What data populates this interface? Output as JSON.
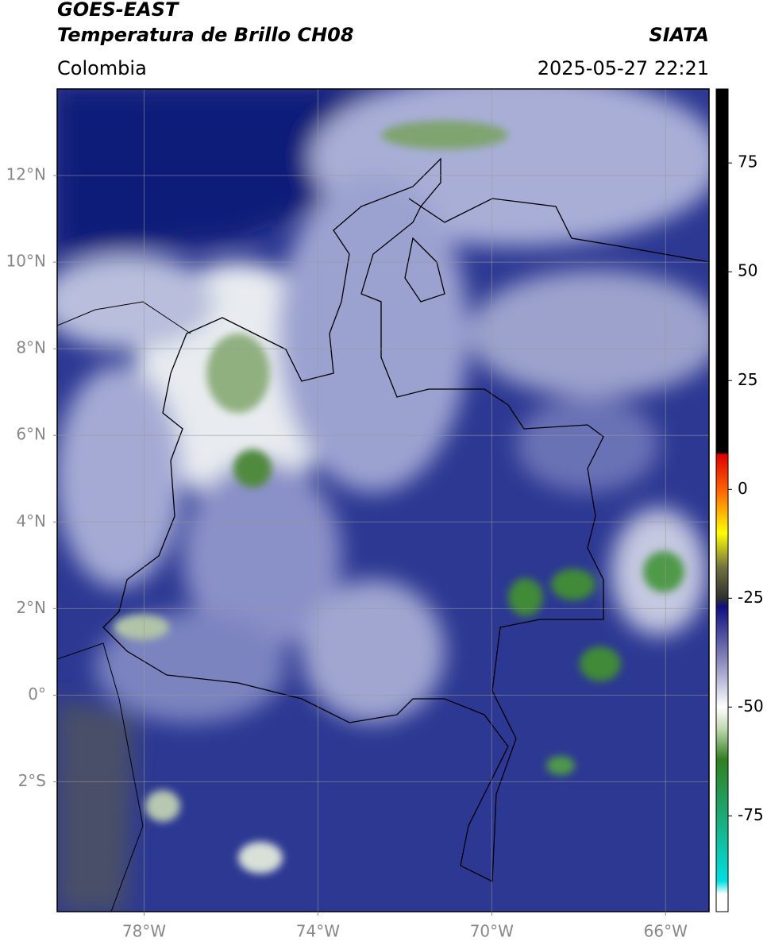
{
  "chart_data": {
    "type": "map",
    "title": "GOES-EAST",
    "subtitle": "Temperatura de Brillo CH08",
    "source": "SIATA",
    "region": "Colombia",
    "datetime": "2025-05-27 22:21",
    "xlim": [
      -80,
      -65
    ],
    "ylim": [
      -5,
      14
    ],
    "xticks": [
      {
        "value": -78,
        "label": "78°W"
      },
      {
        "value": -74,
        "label": "74°W"
      },
      {
        "value": -70,
        "label": "70°W"
      },
      {
        "value": -66,
        "label": "66°W"
      }
    ],
    "yticks": [
      {
        "value": 12,
        "label": "12°N"
      },
      {
        "value": 10,
        "label": "10°N"
      },
      {
        "value": 8,
        "label": "8°N"
      },
      {
        "value": 6,
        "label": "6°N"
      },
      {
        "value": 4,
        "label": "4°N"
      },
      {
        "value": 2,
        "label": "2°N"
      },
      {
        "value": 0,
        "label": "0°"
      },
      {
        "value": -2,
        "label": "2°S"
      }
    ],
    "grid": true,
    "colorbar": {
      "lim": [
        -97,
        92
      ],
      "ticks": [
        75,
        50,
        25,
        0,
        -25,
        -50,
        -75
      ],
      "colormap": [
        {
          "value": 92,
          "color": "#000000"
        },
        {
          "value": 8.5,
          "color": "#000000"
        },
        {
          "value": 8,
          "color": "#e00000"
        },
        {
          "value": 0,
          "color": "#ff6000"
        },
        {
          "value": -10,
          "color": "#ffff00"
        },
        {
          "value": -18,
          "color": "#707040"
        },
        {
          "value": -25,
          "color": "#303030"
        },
        {
          "value": -27,
          "color": "#101080"
        },
        {
          "value": -40,
          "color": "#9090c0"
        },
        {
          "value": -50,
          "color": "#ffffff"
        },
        {
          "value": -55,
          "color": "#c0d8b0"
        },
        {
          "value": -62,
          "color": "#308020"
        },
        {
          "value": -72,
          "color": "#20a060"
        },
        {
          "value": -90,
          "color": "#00e0e0"
        },
        {
          "value": -93,
          "color": "#ffffff"
        },
        {
          "value": -97,
          "color": "#ffffff"
        }
      ]
    }
  }
}
